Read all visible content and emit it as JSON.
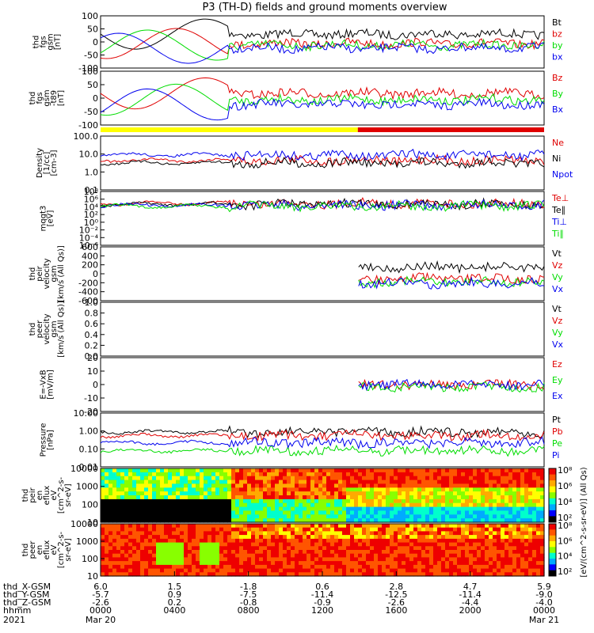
{
  "title": "P3 (TH-D) fields and ground moments overview",
  "colors": {
    "black": "#000000",
    "red": "#e00000",
    "green": "#00dd00",
    "blue": "#0000ee",
    "yellow": "#ffff00"
  },
  "chart_data": [
    {
      "type": "line",
      "ylabel": [
        "thd",
        "fgs",
        "gsm",
        "[nT]"
      ],
      "yticks": [
        "100",
        "50",
        "0",
        "-50",
        "-100"
      ],
      "series": [
        {
          "name": "Bt",
          "color": "black"
        },
        {
          "name": "bz",
          "color": "red"
        },
        {
          "name": "by",
          "color": "green"
        },
        {
          "name": "bx",
          "color": "blue"
        }
      ]
    },
    {
      "type": "line",
      "ylabel": [
        "thd",
        "fgs",
        "gsm",
        "-t89",
        "[nT]"
      ],
      "yticks": [
        "100",
        "50",
        "0",
        "-50",
        "-100"
      ],
      "series": [
        {
          "name": "Bz",
          "color": "red"
        },
        {
          "name": "By",
          "color": "green"
        },
        {
          "name": "Bx",
          "color": "blue"
        }
      ]
    },
    {
      "type": "line",
      "ylabel": [
        "Density",
        "[1/cc]",
        "[cm-3]"
      ],
      "yscale": "log",
      "yticks": [
        "100.0",
        "10.0",
        "1.0",
        "0.1"
      ],
      "series": [
        {
          "name": "Ne",
          "color": "red"
        },
        {
          "name": "Ni",
          "color": "black"
        },
        {
          "name": "Npot",
          "color": "blue"
        }
      ]
    },
    {
      "type": "line",
      "ylabel": [
        "mqgt3",
        "[eV]"
      ],
      "yscale": "log",
      "yticks": [
        "10⁸",
        "10⁶",
        "10⁴",
        "10²",
        "10⁰",
        "10⁻²",
        "10⁻⁴",
        "10⁻⁶"
      ],
      "series": [
        {
          "name": "Te⊥",
          "color": "red"
        },
        {
          "name": "Te∥",
          "color": "black"
        },
        {
          "name": "Ti⊥",
          "color": "blue"
        },
        {
          "name": "Ti∥",
          "color": "green"
        }
      ]
    },
    {
      "type": "line",
      "ylabel": [
        "thd",
        "peir",
        "velocity",
        "gsm",
        "[km/s (All Qs)]"
      ],
      "yticks": [
        "600",
        "400",
        "200",
        "0",
        "-200",
        "-400",
        "-600"
      ],
      "series": [
        {
          "name": "Vt",
          "color": "black"
        },
        {
          "name": "Vz",
          "color": "red"
        },
        {
          "name": "Vy",
          "color": "green"
        },
        {
          "name": "Vx",
          "color": "blue"
        }
      ]
    },
    {
      "type": "line",
      "ylabel": [
        "thd",
        "peer",
        "velocity",
        "gsm",
        "[km/s (All Qs)]"
      ],
      "yticks": [
        "1.0",
        "0.8",
        "0.6",
        "0.4",
        "0.2",
        "0.0"
      ],
      "series": [
        {
          "name": "Vt",
          "color": "black"
        },
        {
          "name": "Vz",
          "color": "red"
        },
        {
          "name": "Vy",
          "color": "green"
        },
        {
          "name": "Vx",
          "color": "blue"
        }
      ]
    },
    {
      "type": "line",
      "ylabel": [
        "E=-VxB",
        "[mV/m]"
      ],
      "yticks": [
        "20",
        "10",
        "0",
        "-10",
        "-20"
      ],
      "series": [
        {
          "name": "Ez",
          "color": "red"
        },
        {
          "name": "Ey",
          "color": "green"
        },
        {
          "name": "Ex",
          "color": "blue"
        }
      ]
    },
    {
      "type": "line",
      "ylabel": [
        "Pressure",
        "[nPa]"
      ],
      "yscale": "log",
      "yticks": [
        "10.00",
        "1.00",
        "0.10",
        "0.01"
      ],
      "series": [
        {
          "name": "Pt",
          "color": "black"
        },
        {
          "name": "Pb",
          "color": "red"
        },
        {
          "name": "Pe",
          "color": "green"
        },
        {
          "name": "Pi",
          "color": "blue"
        }
      ]
    },
    {
      "type": "heatmap",
      "ylabel": [
        "thd",
        "peir",
        "en",
        "eflux",
        "eV",
        "[cm^2-s-",
        "sr-eV]"
      ],
      "yscale": "log",
      "yticks": [
        "10000",
        "1000",
        "100",
        "10"
      ]
    },
    {
      "type": "heatmap",
      "ylabel": [
        "thd",
        "peer",
        "en",
        "eflux",
        "eV",
        "[cm^2-s-",
        "sr-eV]"
      ],
      "yscale": "log",
      "yticks": [
        "10000",
        "1000",
        "100",
        "10"
      ]
    }
  ],
  "colorbar": {
    "ticks": [
      "10⁸",
      "10⁶",
      "10⁴",
      "10²",
      "10⁸",
      "10⁶",
      "10⁴",
      "10²"
    ],
    "label": "[eV/(cm^2-s-sr-eV)] (All Qs)"
  },
  "xaxis": {
    "rows": [
      {
        "name": "thd_X-GSM",
        "values": [
          "6.0",
          "1.5",
          "-1.8",
          "0.6",
          "2.8",
          "4.7",
          "5.9"
        ]
      },
      {
        "name": "thd_Y-GSM",
        "values": [
          "-5.7",
          "0.9",
          "-7.5",
          "-11.4",
          "-12.5",
          "-11.4",
          "-9.0"
        ]
      },
      {
        "name": "thd_Z-GSM",
        "values": [
          "-2.6",
          "0.2",
          "-0.8",
          "-0.9",
          "-2.6",
          "-4.4",
          "-4.0"
        ]
      },
      {
        "name": "hhmm",
        "values": [
          "0000",
          "0400",
          "0800",
          "1200",
          "1600",
          "2000",
          "0000"
        ]
      }
    ],
    "year": "2021",
    "date_start": "Mar 20",
    "date_end": "Mar 21"
  }
}
